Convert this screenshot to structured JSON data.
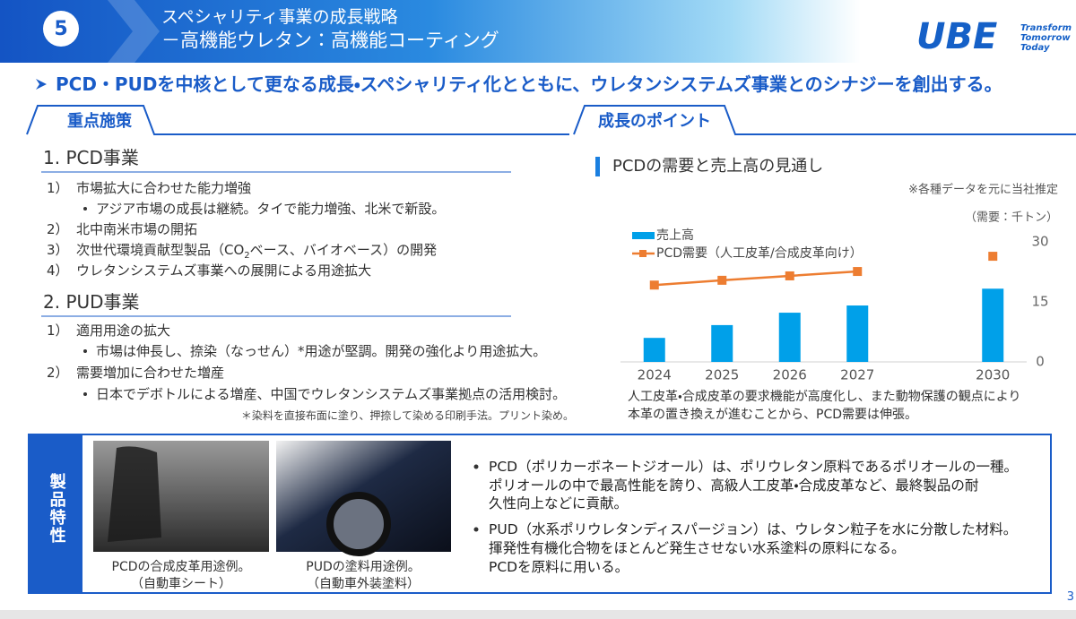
{
  "header": {
    "number": "5",
    "title": [
      "スペシャリティ事業の成長戦略",
      "－高機能ウレタン：高機能コーティング"
    ],
    "logo": "UBE",
    "tagline": [
      "Transform",
      "Tomorrow",
      "Today"
    ]
  },
  "headline": "PCD・PUDを中核として更なる成長・スペシャリティ化とともに、ウレタンシステムズ事業とのシナジーを創出する。",
  "left": {
    "heading": "重点施策",
    "sections": [
      {
        "title": "1. PCD事業",
        "items": [
          {
            "num": "1）",
            "text": "市場拡大に合わせた能力増強",
            "sub": "アジア市場の成長は継続。タイで能力増強、北米で新設。"
          },
          {
            "num": "2）",
            "text": "北中南米市場の開拓"
          },
          {
            "num": "3）",
            "text_parts": [
              "次世代環境貢献型製品（CO",
              "2",
              "ベース、バイオベース）の開発"
            ]
          },
          {
            "num": "4）",
            "text": "ウレタンシステムズ事業への展開による用途拡大"
          }
        ]
      },
      {
        "title": "2. PUD事業",
        "items": [
          {
            "num": "1）",
            "text": "適用用途の拡大",
            "sub": "市場は伸長し、捺染（なっせん）*用途が堅調。開発の強化より用途拡大。"
          },
          {
            "num": "2）",
            "text": "需要増加に合わせた増産",
            "sub": "日本でデボトルによる増産、中国でウレタンシステムズ事業拠点の活用検討。"
          }
        ]
      }
    ],
    "footnote": "＊染料を直接布面に塗り、押捺して染める印刷手法。プリント染め。"
  },
  "right": {
    "heading": "成長のポイント",
    "caption": [
      "人工皮革・合成皮革の要求機能が高度化し、また動物保護の観点により",
      "本革の置き換えが進むことから、PCD需要は伸張。"
    ]
  },
  "chart_data": {
    "type": "bar",
    "title": "PCDの需要と売上高の見通し",
    "note": "※各種データを元に当社推定",
    "axis_label": "（需要：千トン）",
    "categories": [
      "2024",
      "2025",
      "2026",
      "2027",
      null,
      "2030"
    ],
    "series": [
      {
        "name": "売上高",
        "type": "bar",
        "color": "#00a0e9",
        "values": [
          6,
          9.2,
          12.3,
          14.1,
          null,
          18.3
        ]
      },
      {
        "name": "PCD需要（人工皮革/合成皮革向け）",
        "type": "line",
        "color": "#ed7d31",
        "values": [
          19.2,
          20.4,
          21.5,
          22.6,
          null,
          26.4
        ]
      }
    ],
    "ylim": [
      0,
      30
    ],
    "yticks": [
      0,
      15,
      30
    ],
    "grid": false
  },
  "product": {
    "label": "製品特性",
    "photos": [
      {
        "caption": [
          "PCDの合成皮革用途例。",
          "（自動車シート）"
        ]
      },
      {
        "caption": [
          "PUDの塗料用途例。",
          "（自動車外装塗料）"
        ]
      }
    ],
    "bullets": [
      [
        "PCD（ポリカーボネートジオール）は、ポリウレタン原料であるポリオールの一種。",
        "ポリオールの中で最高性能を誇り、高級人工皮革・合成皮革など、最終製品の耐",
        "久性向上などに貢献。"
      ],
      [
        "PUD（水系ポリウレタンディスパージョン）は、ウレタン粒子を水に分散した材料。",
        "揮発性有機化合物をほとんど発生させない水系塗料の原料になる。",
        "PCDを原料に用いる。"
      ]
    ]
  },
  "page_number": "3"
}
